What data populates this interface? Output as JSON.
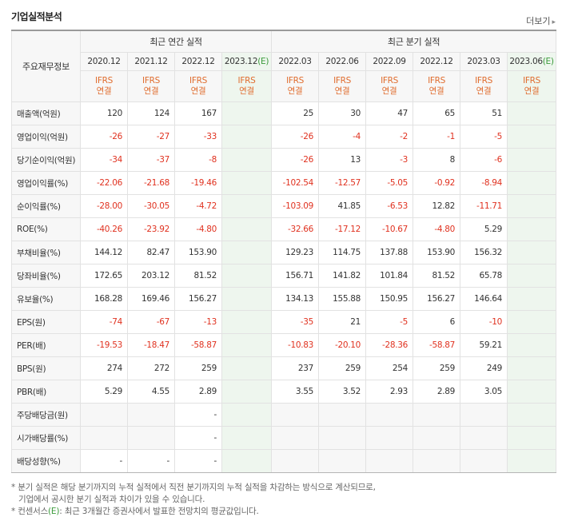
{
  "title": "기업실적분석",
  "more_label": "더보기",
  "header": {
    "row_label": "주요재무정보",
    "annual_group": "최근 연간 실적",
    "quarterly_group": "최근 분기 실적",
    "annual_periods": [
      "2020.12",
      "2021.12",
      "2022.12",
      "2023.12"
    ],
    "quarterly_periods": [
      "2022.03",
      "2022.06",
      "2022.09",
      "2022.12",
      "2023.03",
      "2023.06"
    ],
    "estimate_mark": "(E)",
    "basis_top": "IFRS",
    "basis_bottom": "연결"
  },
  "rows": [
    {
      "label": "매출액(억원)",
      "annual": [
        "120",
        "124",
        "167",
        ""
      ],
      "quarterly": [
        "25",
        "30",
        "47",
        "65",
        "51",
        ""
      ]
    },
    {
      "label": "영업이익(억원)",
      "annual": [
        "-26",
        "-27",
        "-33",
        ""
      ],
      "quarterly": [
        "-26",
        "-4",
        "-2",
        "-1",
        "-5",
        ""
      ]
    },
    {
      "label": "당기순이익(억원)",
      "annual": [
        "-34",
        "-37",
        "-8",
        ""
      ],
      "quarterly": [
        "-26",
        "13",
        "-3",
        "8",
        "-6",
        ""
      ]
    },
    {
      "label": "영업이익률(%)",
      "annual": [
        "-22.06",
        "-21.68",
        "-19.46",
        ""
      ],
      "quarterly": [
        "-102.54",
        "-12.57",
        "-5.05",
        "-0.92",
        "-8.94",
        ""
      ]
    },
    {
      "label": "순이익률(%)",
      "annual": [
        "-28.00",
        "-30.05",
        "-4.72",
        ""
      ],
      "quarterly": [
        "-103.09",
        "41.85",
        "-6.53",
        "12.82",
        "-11.71",
        ""
      ]
    },
    {
      "label": "ROE(%)",
      "annual": [
        "-40.26",
        "-23.92",
        "-4.80",
        ""
      ],
      "quarterly": [
        "-32.66",
        "-17.12",
        "-10.67",
        "-4.80",
        "5.29",
        ""
      ]
    },
    {
      "label": "부채비율(%)",
      "annual": [
        "144.12",
        "82.47",
        "153.90",
        ""
      ],
      "quarterly": [
        "129.23",
        "114.75",
        "137.88",
        "153.90",
        "156.32",
        ""
      ]
    },
    {
      "label": "당좌비율(%)",
      "annual": [
        "172.65",
        "203.12",
        "81.52",
        ""
      ],
      "quarterly": [
        "156.71",
        "141.82",
        "101.84",
        "81.52",
        "65.78",
        ""
      ]
    },
    {
      "label": "유보율(%)",
      "annual": [
        "168.28",
        "169.46",
        "156.27",
        ""
      ],
      "quarterly": [
        "134.13",
        "155.88",
        "150.95",
        "156.27",
        "146.64",
        ""
      ]
    },
    {
      "label": "EPS(원)",
      "annual": [
        "-74",
        "-67",
        "-13",
        ""
      ],
      "quarterly": [
        "-35",
        "21",
        "-5",
        "6",
        "-10",
        ""
      ]
    },
    {
      "label": "PER(배)",
      "annual": [
        "-19.53",
        "-18.47",
        "-58.87",
        ""
      ],
      "quarterly": [
        "-10.83",
        "-20.10",
        "-28.36",
        "-58.87",
        "59.21",
        ""
      ]
    },
    {
      "label": "BPS(원)",
      "annual": [
        "274",
        "272",
        "259",
        ""
      ],
      "quarterly": [
        "237",
        "259",
        "254",
        "259",
        "249",
        ""
      ]
    },
    {
      "label": "PBR(배)",
      "annual": [
        "5.29",
        "4.55",
        "2.89",
        ""
      ],
      "quarterly": [
        "3.55",
        "3.52",
        "2.93",
        "2.89",
        "3.05",
        ""
      ]
    },
    {
      "label": "주당배당금(원)",
      "annual": [
        "",
        "",
        "-",
        ""
      ],
      "quarterly": [
        "",
        "",
        "",
        "",
        "",
        ""
      ]
    },
    {
      "label": "시가배당률(%)",
      "annual": [
        "",
        "",
        "-",
        ""
      ],
      "quarterly": [
        "",
        "",
        "",
        "",
        "",
        ""
      ]
    },
    {
      "label": "배당성향(%)",
      "annual": [
        "-",
        "-",
        "-",
        ""
      ],
      "quarterly": [
        "",
        "",
        "",
        "",
        "",
        ""
      ]
    }
  ],
  "groups_start_rows": [
    0,
    3,
    6,
    9,
    13
  ],
  "notes": {
    "line1": "* 분기 실적은 해당 분기까지의 누적 실적에서 직전 분기까지의 누적 실적을 차감하는 방식으로 계산되므로,",
    "line2": "기업에서 공시한 분기 실적과 차이가 있을 수 있습니다.",
    "line3_prefix": "* 컨센서스",
    "line3_mark": "(E)",
    "line3_suffix": ": 최근 3개월간 증권사에서 발표한 전망치의 평균값입니다."
  },
  "colors": {
    "negative": "#e0311f",
    "basis": "#e06c2e",
    "estimate_bg": "#eef6ee",
    "estimate_mark": "#3a9a3a"
  }
}
